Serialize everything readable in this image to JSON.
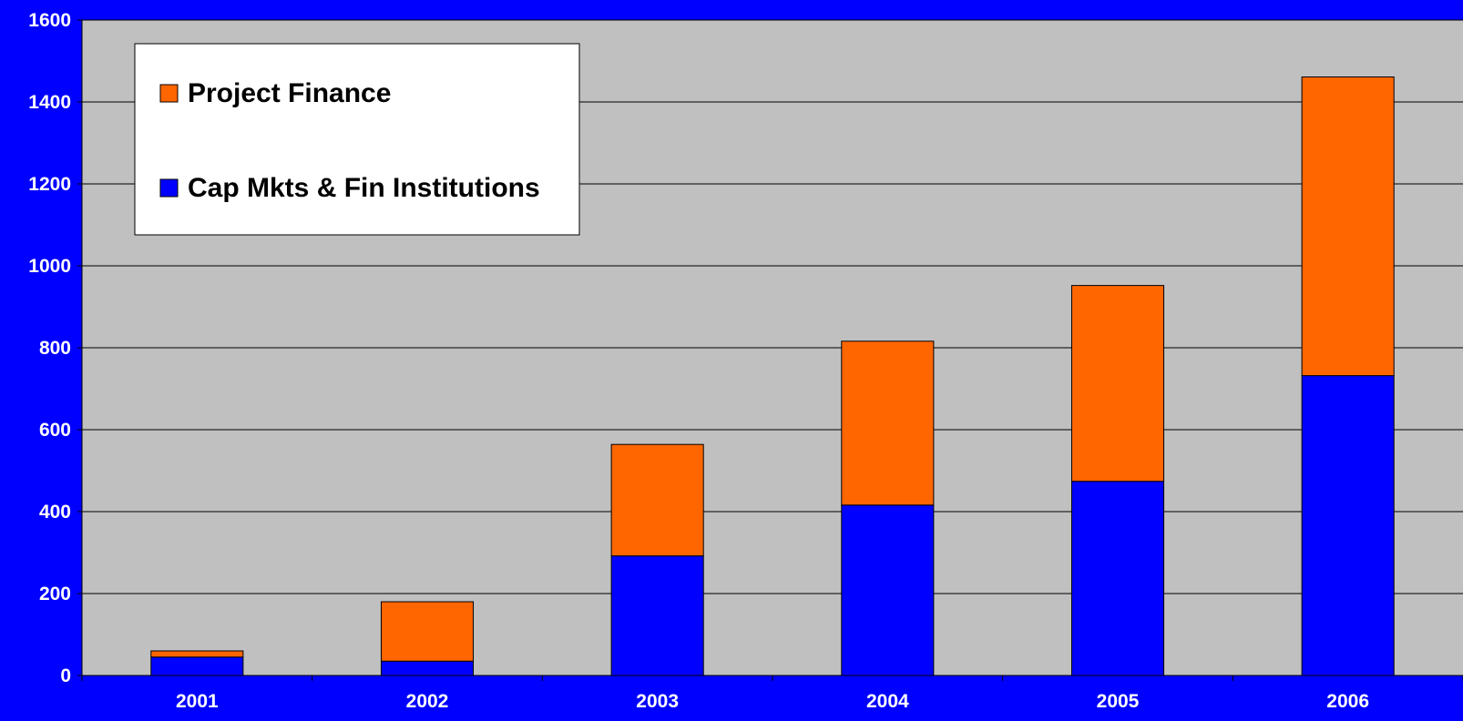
{
  "chart_data": {
    "type": "bar",
    "stacked": true,
    "categories": [
      "2001",
      "2002",
      "2003",
      "2004",
      "2005",
      "2006"
    ],
    "series": [
      {
        "name": "Cap Mkts & Fin Institutions",
        "values": [
          45,
          35,
          292,
          416,
          474,
          732
        ]
      },
      {
        "name": "Project Finance",
        "values": [
          15,
          145,
          272,
          400,
          478,
          729
        ]
      }
    ],
    "ylim": [
      0,
      1600
    ],
    "yticks": [
      0,
      200,
      400,
      600,
      800,
      1000,
      1200,
      1400,
      1600
    ],
    "grid": true,
    "legend": {
      "position": "top-left",
      "entries": [
        "Project Finance",
        "Cap Mkts & Fin Institutions"
      ]
    },
    "colors": {
      "background": "#0000FF",
      "plot_area": "#C0C0C0",
      "Cap Mkts & Fin Institutions": "#0000FF",
      "Project Finance": "#FF6600"
    }
  }
}
